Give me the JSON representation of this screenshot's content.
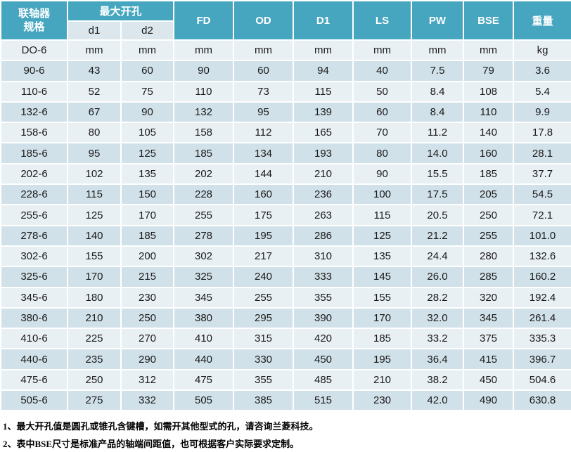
{
  "table": {
    "header": {
      "spec_line1": "联轴器",
      "spec_line2": "规格",
      "max_bore_label": "最大开孔",
      "sub_d1": "d1",
      "sub_d2": "d2",
      "cols": [
        "FD",
        "OD",
        "D1",
        "LS",
        "PW",
        "BSE",
        "重量"
      ]
    },
    "units_row": [
      "DO-6",
      "mm",
      "mm",
      "mm",
      "mm",
      "mm",
      "mm",
      "mm",
      "mm",
      "kg"
    ],
    "rows": [
      [
        "90-6",
        "43",
        "60",
        "90",
        "60",
        "94",
        "40",
        "7.5",
        "79",
        "3.6"
      ],
      [
        "110-6",
        "52",
        "75",
        "110",
        "73",
        "115",
        "50",
        "8.4",
        "108",
        "5.4"
      ],
      [
        "132-6",
        "67",
        "90",
        "132",
        "95",
        "139",
        "60",
        "8.4",
        "110",
        "9.9"
      ],
      [
        "158-6",
        "80",
        "105",
        "158",
        "112",
        "165",
        "70",
        "11.2",
        "140",
        "17.8"
      ],
      [
        "185-6",
        "95",
        "125",
        "185",
        "134",
        "193",
        "80",
        "14.0",
        "160",
        "28.1"
      ],
      [
        "202-6",
        "102",
        "135",
        "202",
        "144",
        "210",
        "90",
        "15.5",
        "185",
        "37.7"
      ],
      [
        "228-6",
        "115",
        "150",
        "228",
        "160",
        "236",
        "100",
        "17.5",
        "205",
        "54.5"
      ],
      [
        "255-6",
        "125",
        "170",
        "255",
        "175",
        "263",
        "115",
        "20.5",
        "250",
        "72.1"
      ],
      [
        "278-6",
        "140",
        "185",
        "278",
        "195",
        "286",
        "125",
        "21.2",
        "255",
        "101.0"
      ],
      [
        "302-6",
        "155",
        "200",
        "302",
        "217",
        "310",
        "135",
        "24.4",
        "280",
        "132.6"
      ],
      [
        "325-6",
        "170",
        "215",
        "325",
        "240",
        "333",
        "145",
        "26.0",
        "285",
        "160.2"
      ],
      [
        "345-6",
        "180",
        "230",
        "345",
        "255",
        "355",
        "155",
        "28.2",
        "320",
        "192.4"
      ],
      [
        "380-6",
        "210",
        "250",
        "380",
        "295",
        "390",
        "170",
        "32.0",
        "345",
        "261.4"
      ],
      [
        "410-6",
        "225",
        "270",
        "410",
        "315",
        "420",
        "185",
        "33.2",
        "375",
        "335.3"
      ],
      [
        "440-6",
        "235",
        "290",
        "440",
        "330",
        "450",
        "195",
        "36.4",
        "415",
        "396.7"
      ],
      [
        "475-6",
        "250",
        "312",
        "475",
        "355",
        "485",
        "210",
        "38.2",
        "450",
        "504.6"
      ],
      [
        "505-6",
        "275",
        "332",
        "505",
        "385",
        "515",
        "230",
        "42.0",
        "490",
        "630.8"
      ]
    ]
  },
  "footnotes": [
    "1、最大开孔值是圆孔或锥孔含键槽，如需开其他型式的孔，请咨询兰菱科技。",
    "2、表中BSE尺寸是标准产品的轴端间距值，也可根据客户实际要求定制。"
  ],
  "colors": {
    "header_teal": "#47A6BF",
    "subheader": "#DBE7ED",
    "row_light": "#E9F0F4",
    "row_dark": "#D1E1E9",
    "header_text": "#FFFFFF",
    "body_text": "#1A1A1A"
  }
}
